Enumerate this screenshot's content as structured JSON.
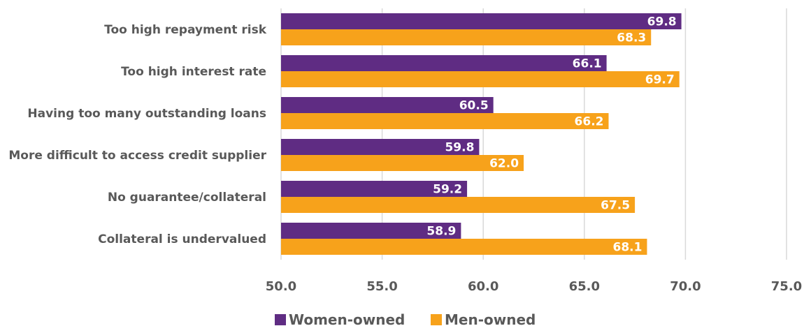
{
  "chart_data": {
    "type": "bar",
    "orientation": "horizontal",
    "categories": [
      "Too high repayment risk",
      "Too high interest rate",
      "Having too many outstanding loans",
      "More difficult to access credit supplier",
      "No guarantee/collateral",
      "Collateral is undervalued"
    ],
    "series": [
      {
        "name": "Women-owned",
        "color": "#5f2c83",
        "values": [
          69.8,
          66.1,
          60.5,
          59.8,
          59.2,
          58.9
        ]
      },
      {
        "name": "Men-owned",
        "color": "#f7a21b",
        "values": [
          68.3,
          69.7,
          66.2,
          62.0,
          67.5,
          68.1
        ]
      }
    ],
    "xlim": [
      50.0,
      75.0
    ],
    "xticks": [
      "50.0",
      "55.0",
      "60.0",
      "65.0",
      "70.0",
      "75.0"
    ],
    "grid": "vertical",
    "legend": "bottom-center"
  }
}
